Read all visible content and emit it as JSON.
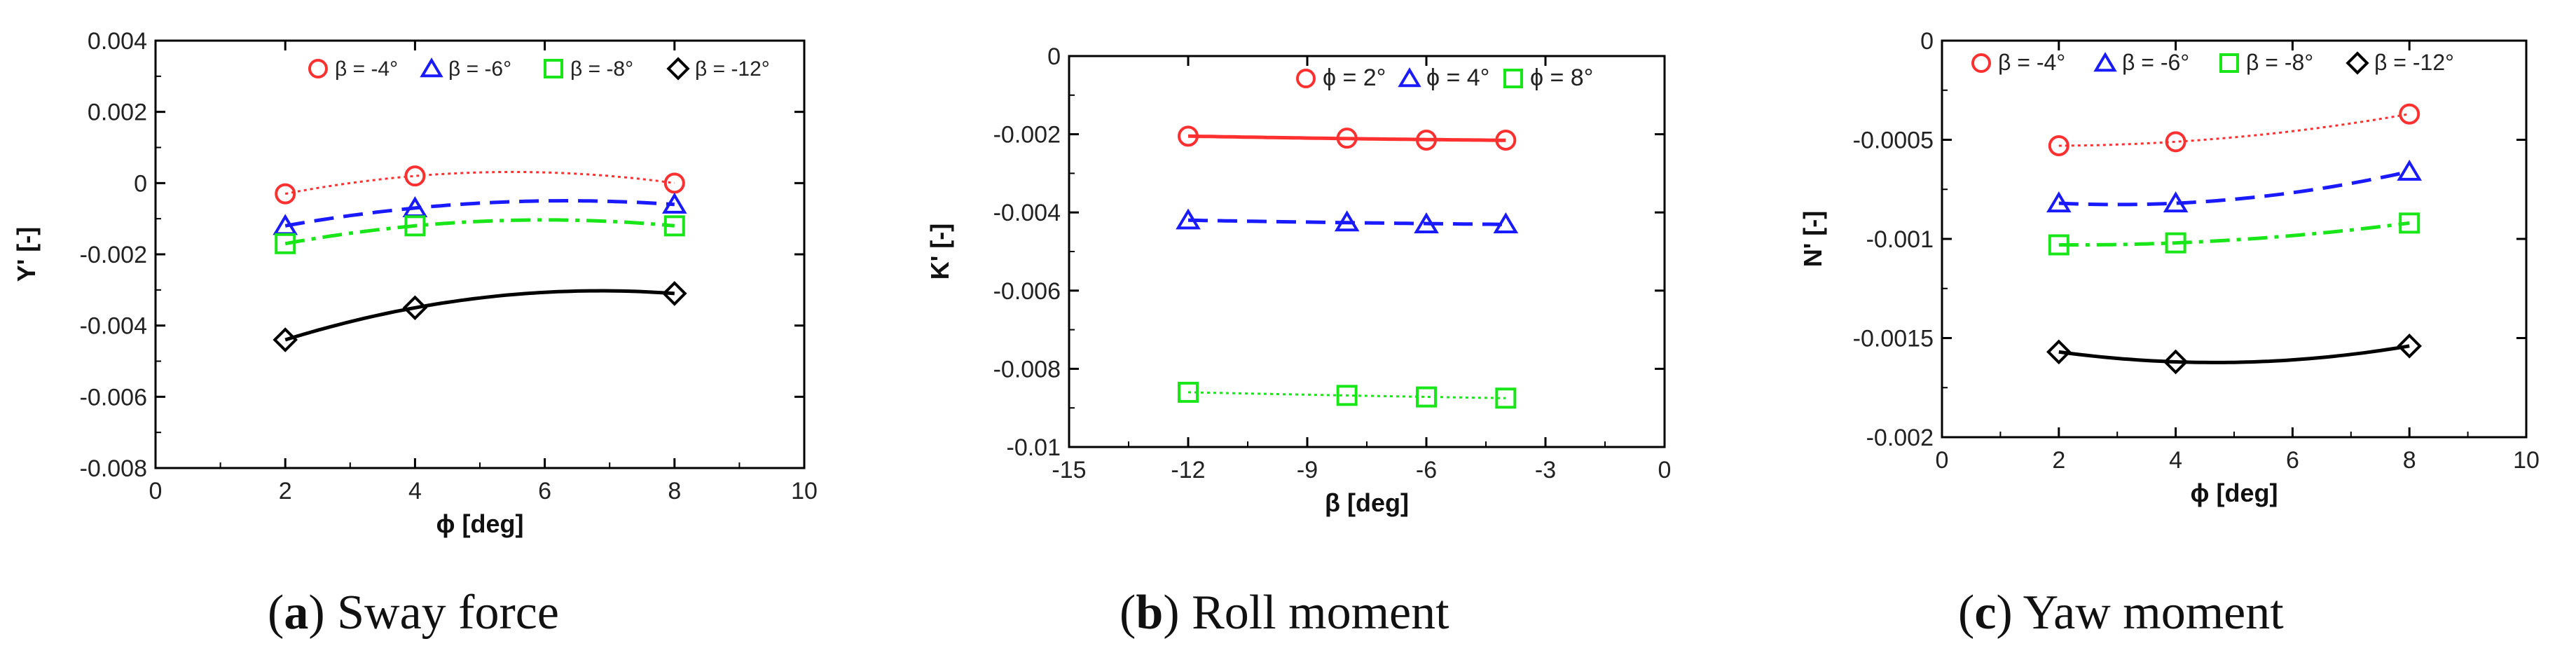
{
  "figure": {
    "panels": [
      {
        "caption_letter": "a",
        "caption_text": "Sway force"
      },
      {
        "caption_letter": "b",
        "caption_text": "Roll moment"
      },
      {
        "caption_letter": "c",
        "caption_text": "Yaw moment"
      }
    ]
  },
  "chart_data": [
    {
      "type": "line",
      "xlabel": "ϕ [deg]",
      "ylabel": "Y' [-]",
      "xlim": [
        0,
        10
      ],
      "ylim": [
        -0.008,
        0.004
      ],
      "xticks": [
        0,
        2,
        4,
        6,
        8,
        10
      ],
      "yticks": [
        -0.008,
        -0.006,
        -0.004,
        -0.002,
        0,
        0.002,
        0.004
      ],
      "xtick_labels": [
        "0",
        "2",
        "4",
        "6",
        "8",
        "10"
      ],
      "ytick_labels": [
        "-0.008",
        "-0.006",
        "-0.004",
        "-0.002",
        "0",
        "0.002",
        "0.004"
      ],
      "legend_position": "top",
      "grid": false,
      "series": [
        {
          "name": "β = -4°",
          "x": [
            2,
            4,
            8
          ],
          "y": [
            -0.0003,
            0.0002,
            0.0
          ],
          "color": "#ff3030",
          "marker": "circle",
          "dash": "4 5",
          "sw": 3
        },
        {
          "name": "β = -6°",
          "x": [
            2,
            4,
            8
          ],
          "y": [
            -0.0012,
            -0.0007,
            -0.0006
          ],
          "color": "#1a1aff",
          "marker": "triangle",
          "dash": "28 14",
          "sw": 5
        },
        {
          "name": "β = -8°",
          "x": [
            2,
            4,
            8
          ],
          "y": [
            -0.0017,
            -0.0012,
            -0.0012
          ],
          "color": "#19e619",
          "marker": "square",
          "dash": "28 10 6 10",
          "sw": 5
        },
        {
          "name": "β = -12°",
          "x": [
            2,
            4,
            8
          ],
          "y": [
            -0.0044,
            -0.0035,
            -0.0031
          ],
          "color": "#000000",
          "marker": "diamond",
          "dash": "",
          "sw": 5
        }
      ]
    },
    {
      "type": "line",
      "xlabel": "β [deg]",
      "ylabel": "K' [-]",
      "xlim": [
        -15,
        0
      ],
      "ylim": [
        -0.01,
        0
      ],
      "xticks": [
        -15,
        -12,
        -9,
        -6,
        -3,
        0
      ],
      "yticks": [
        -0.01,
        -0.008,
        -0.006,
        -0.004,
        -0.002,
        0
      ],
      "xtick_labels": [
        "-15",
        "-12",
        "-9",
        "-6",
        "-3",
        "0"
      ],
      "ytick_labels": [
        "-0.01",
        "-0.008",
        "-0.006",
        "-0.004",
        "-0.002",
        "0"
      ],
      "legend_position": "top",
      "grid": false,
      "series": [
        {
          "name": "ϕ = 2°",
          "x": [
            -12,
            -8,
            -6,
            -4
          ],
          "y": [
            -0.00205,
            -0.0021,
            -0.00215,
            -0.00215
          ],
          "color": "#ff3030",
          "marker": "circle",
          "dash": "",
          "sw": 5
        },
        {
          "name": "ϕ = 4°",
          "x": [
            -12,
            -8,
            -6,
            -4
          ],
          "y": [
            -0.0042,
            -0.00425,
            -0.0043,
            -0.0043
          ],
          "color": "#1a1aff",
          "marker": "triangle",
          "dash": "28 14",
          "sw": 5
        },
        {
          "name": "ϕ = 8°",
          "x": [
            -12,
            -8,
            -6,
            -4
          ],
          "y": [
            -0.0086,
            -0.00868,
            -0.00872,
            -0.00875
          ],
          "color": "#19e619",
          "marker": "square",
          "dash": "4 5",
          "sw": 3
        }
      ]
    },
    {
      "type": "line",
      "xlabel": "ϕ [deg]",
      "ylabel": "N' [-]",
      "xlim": [
        0,
        10
      ],
      "ylim": [
        -0.002,
        0
      ],
      "xticks": [
        0,
        2,
        4,
        6,
        8,
        10
      ],
      "yticks": [
        -0.002,
        -0.0015,
        -0.001,
        -0.0005,
        0
      ],
      "xtick_labels": [
        "0",
        "2",
        "4",
        "6",
        "8",
        "10"
      ],
      "ytick_labels": [
        "-0.002",
        "-0.0015",
        "-0.001",
        "-0.0005",
        "0"
      ],
      "legend_position": "top",
      "grid": false,
      "series": [
        {
          "name": "β = -4°",
          "x": [
            2,
            4,
            8
          ],
          "y": [
            -0.00053,
            -0.00051,
            -0.00037
          ],
          "color": "#ff3030",
          "marker": "circle",
          "dash": "4 5",
          "sw": 3
        },
        {
          "name": "β = -6°",
          "x": [
            2,
            4,
            8
          ],
          "y": [
            -0.00082,
            -0.00082,
            -0.00066
          ],
          "color": "#1a1aff",
          "marker": "triangle",
          "dash": "28 14",
          "sw": 5
        },
        {
          "name": "β = -8°",
          "x": [
            2,
            4,
            8
          ],
          "y": [
            -0.00103,
            -0.00102,
            -0.00092
          ],
          "color": "#19e619",
          "marker": "square",
          "dash": "28 10 6 10",
          "sw": 5
        },
        {
          "name": "β = -12°",
          "x": [
            2,
            4,
            8
          ],
          "y": [
            -0.00157,
            -0.00162,
            -0.00154
          ],
          "color": "#000000",
          "marker": "diamond",
          "dash": "",
          "sw": 5
        }
      ]
    }
  ]
}
